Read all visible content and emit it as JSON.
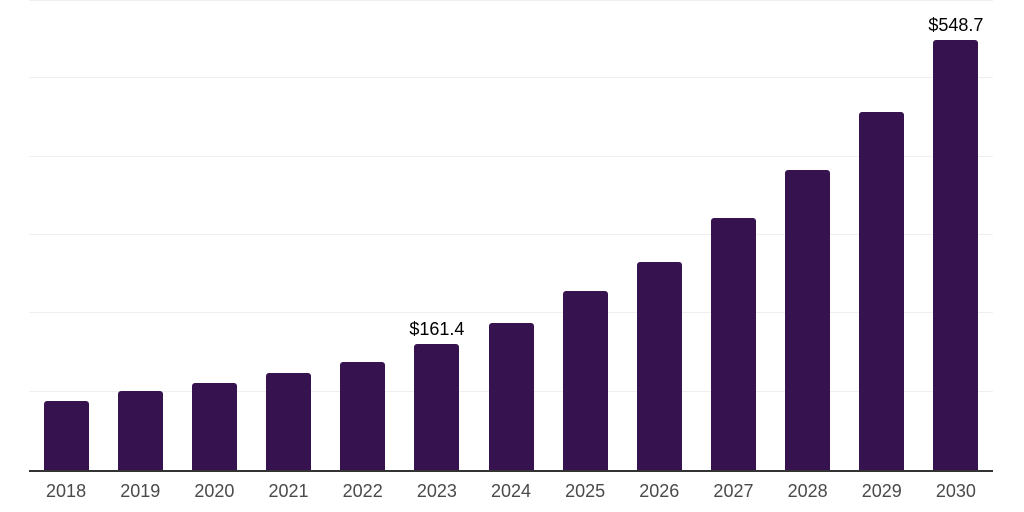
{
  "chart_data": {
    "type": "bar",
    "title": "",
    "xlabel": "",
    "ylabel": "",
    "categories": [
      "2018",
      "2019",
      "2020",
      "2021",
      "2022",
      "2023",
      "2024",
      "2025",
      "2026",
      "2027",
      "2028",
      "2029",
      "2030"
    ],
    "values": [
      88.5,
      101.2,
      111.5,
      123.4,
      138.3,
      161.4,
      188.1,
      228.9,
      265.5,
      321.5,
      383.0,
      457.4,
      548.7
    ],
    "value_labels": {
      "2023": "$161.4",
      "2030": "$548.7"
    },
    "ylim": [
      0,
      600
    ],
    "gridline_step": 100,
    "grid": true,
    "legend": "none",
    "y_axis_tick_labels_visible": false,
    "bar_color": "#36134F",
    "axis_line_color": "#333333",
    "gridline_color": "#efefef",
    "tick_label_color": "#4a4a4a",
    "value_label_color": "#000000",
    "background_color": "#ffffff"
  }
}
